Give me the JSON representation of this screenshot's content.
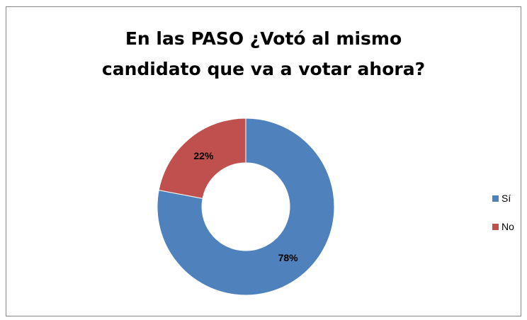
{
  "chart_data": {
    "type": "pie",
    "style": "doughnut",
    "title_lines": [
      "En las PASO ¿Votó al mismo",
      "candidato que va a votar ahora?"
    ],
    "categories": [
      "Sí",
      "No"
    ],
    "values": [
      78,
      22
    ],
    "data_labels": [
      "78%",
      "22%"
    ],
    "colors": [
      "#4F81BD",
      "#C0504D"
    ],
    "legend_position": "right"
  }
}
